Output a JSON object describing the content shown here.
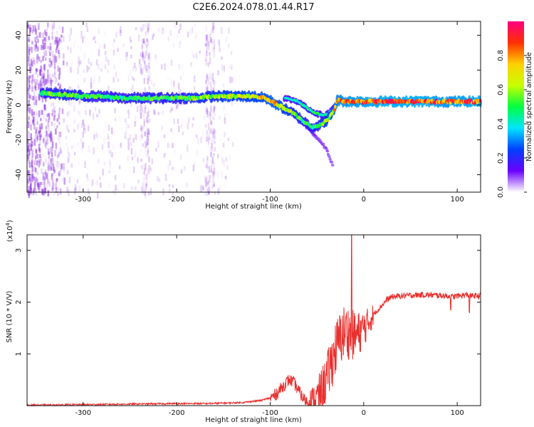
{
  "title": "C2E6.2024.078.01.44.R17",
  "chart_data": [
    {
      "type": "heatmap",
      "xlabel": "Height of straight line (km)",
      "ylabel": "Frequency (Hz)",
      "xlim": [
        -360,
        125
      ],
      "ylim": [
        -50,
        48
      ],
      "xticks": [
        -300,
        -200,
        -100,
        0,
        100
      ],
      "yticks": [
        -40,
        -20,
        0,
        20,
        40
      ],
      "colorbar": {
        "label": "Normalized spectral amplitude",
        "range": [
          0.0,
          1.0
        ],
        "ticks": [
          "0.0",
          "0.2",
          "0.4",
          "0.6",
          "0.8"
        ],
        "colormap": [
          "#ffffff",
          "#6a00ff",
          "#0040ff",
          "#00e5ff",
          "#00ff40",
          "#c8ff00",
          "#ffd000",
          "#ff3000",
          "#ff0080"
        ]
      },
      "main_track": {
        "x": [
          -345,
          -320,
          -300,
          -280,
          -260,
          -240,
          -220,
          -200,
          -180,
          -160,
          -140,
          -120,
          -105,
          -95,
          -85,
          -75,
          -65,
          -55,
          -45,
          -38,
          -32,
          -28,
          -20,
          0,
          20,
          60,
          90,
          125
        ],
        "y": [
          7,
          6,
          5,
          5,
          4,
          4,
          4,
          4,
          4,
          5,
          5,
          5,
          4,
          1,
          -2,
          -5,
          -9,
          -13,
          -11,
          -8,
          -3,
          3,
          2,
          2,
          2,
          2,
          2,
          2
        ],
        "amplitude": [
          0.55,
          0.6,
          0.55,
          0.55,
          0.5,
          0.55,
          0.55,
          0.55,
          0.6,
          0.65,
          0.7,
          0.72,
          0.75,
          0.8,
          0.7,
          0.6,
          0.55,
          0.5,
          0.6,
          0.7,
          0.75,
          0.85,
          0.9,
          0.92,
          0.95,
          0.95,
          0.9,
          0.95
        ]
      },
      "secondary_track": {
        "x": [
          -85,
          -70,
          -60,
          -50,
          -42,
          -36,
          -30
        ],
        "y": [
          4,
          2,
          -2,
          -5,
          -6,
          -4,
          0
        ],
        "amplitude": [
          0.4,
          0.45,
          0.5,
          0.5,
          0.45,
          0.4,
          0.4
        ]
      },
      "faint_branch": {
        "x": [
          -80,
          -70,
          -60,
          -50,
          -40,
          -33
        ],
        "y": [
          -4,
          -8,
          -13,
          -19,
          -25,
          -35
        ],
        "amplitude": [
          0.2,
          0.18,
          0.15,
          0.12,
          0.1,
          0.08
        ]
      },
      "noise_region": {
        "x_from": -360,
        "x_to": -140,
        "density_peak_x": -340
      }
    },
    {
      "type": "line",
      "xlabel": "Height of straight line (km)",
      "ylabel": "SNR (10 * V/V)",
      "y_multiplier": "(x10",
      "y_multiplier_exp": "4",
      "y_multiplier_close": ")",
      "xlim": [
        -360,
        125
      ],
      "ylim": [
        0,
        3.3
      ],
      "xticks": [
        -300,
        -200,
        -100,
        0,
        100
      ],
      "yticks": [
        1,
        2,
        3
      ],
      "series": [
        {
          "color": "#e8302e",
          "x": [
            -360,
            -300,
            -250,
            -200,
            -170,
            -150,
            -130,
            -120,
            -110,
            -100,
            -95,
            -90,
            -85,
            -80,
            -75,
            -70,
            -65,
            -60,
            -55,
            -50,
            -45,
            -40,
            -35,
            -30,
            -25,
            -20,
            -15,
            -10,
            -5,
            0,
            5,
            10,
            15,
            20,
            25,
            30,
            40,
            50,
            60,
            70,
            80,
            90,
            95,
            100,
            110,
            115,
            125
          ],
          "y": [
            0.01,
            0.02,
            0.03,
            0.04,
            0.04,
            0.05,
            0.06,
            0.08,
            0.1,
            0.15,
            0.2,
            0.3,
            0.4,
            0.5,
            0.45,
            0.3,
            0.15,
            0.07,
            0.08,
            0.15,
            0.3,
            0.5,
            0.8,
            1.1,
            1.3,
            1.45,
            1.4,
            1.35,
            1.4,
            1.5,
            1.6,
            1.75,
            1.85,
            1.95,
            2.05,
            2.1,
            2.12,
            2.13,
            2.14,
            2.14,
            2.13,
            2.12,
            2.1,
            2.12,
            2.14,
            2.12,
            2.12
          ]
        }
      ],
      "noise_band": {
        "x_from": -60,
        "x_to": 10,
        "amplitude": 0.55
      },
      "peak_spike": {
        "x": -13,
        "y": 3.3
      },
      "late_dips": [
        {
          "x": 93,
          "y": 1.85
        },
        {
          "x": 113,
          "y": 1.8
        }
      ]
    }
  ]
}
